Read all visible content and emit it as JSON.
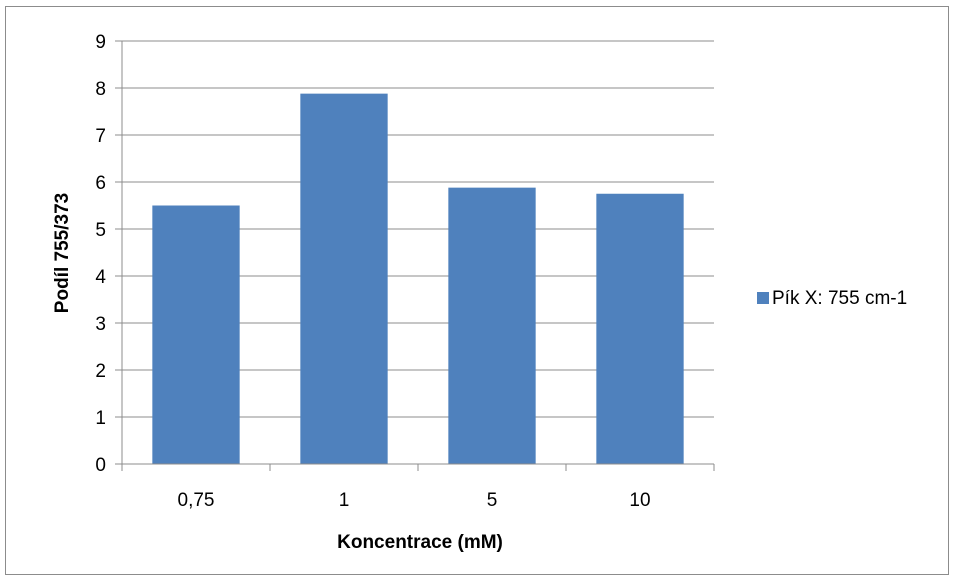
{
  "chart_data": {
    "type": "bar",
    "categories": [
      "0,75",
      "1",
      "5",
      "10"
    ],
    "series": [
      {
        "name": "Pík X: 755 cm-1",
        "values": [
          5.5,
          7.88,
          5.88,
          5.75
        ],
        "color": "#4f81bd"
      }
    ],
    "xlabel": "Koncentrace (mM)",
    "ylabel": "Podíl 755/373",
    "ylim": [
      0,
      9
    ],
    "yticks": [
      "0",
      "1",
      "2",
      "3",
      "4",
      "5",
      "6",
      "7",
      "8",
      "9"
    ],
    "grid": true,
    "legend_position": "right"
  }
}
